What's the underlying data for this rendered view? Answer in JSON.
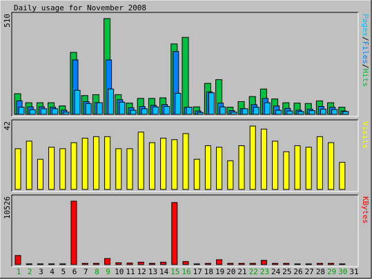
{
  "colors": {
    "background": "#c0c0c0",
    "hits": "#00c040",
    "files": "#0080ff",
    "pages": "#00c0ff",
    "visits": "#ffff00",
    "kbytes": "#ff0000",
    "weekend_label": "#00a000",
    "label": "#000000"
  },
  "chart_data": {
    "type": "bar",
    "title": "Daily usage for November 2008",
    "categories": [
      "1",
      "2",
      "3",
      "4",
      "5",
      "6",
      "7",
      "8",
      "9",
      "10",
      "11",
      "12",
      "13",
      "14",
      "15",
      "16",
      "17",
      "18",
      "19",
      "20",
      "21",
      "22",
      "23",
      "24",
      "25",
      "26",
      "27",
      "28",
      "29",
      "30",
      "31"
    ],
    "weekend_days": [
      "1",
      "2",
      "8",
      "9",
      "15",
      "16",
      "22",
      "23",
      "29",
      "30"
    ],
    "panels": [
      {
        "name": "top",
        "ymax_label": "510",
        "ylim": [
          0,
          510
        ],
        "legend": [
          "Pages",
          "/",
          "Files",
          "/",
          "Hits"
        ],
        "series": [
          {
            "name": "Hits",
            "values": [
              110,
              62,
              62,
              62,
              45,
              330,
              100,
              105,
              510,
              105,
              60,
              85,
              85,
              88,
              375,
              410,
              40,
              165,
              185,
              38,
              68,
              95,
              135,
              82,
              62,
              60,
              58,
              72,
              62,
              38,
              0
            ]
          },
          {
            "name": "Files",
            "values": [
              72,
              40,
              40,
              38,
              22,
              290,
              68,
              62,
              290,
              78,
              35,
              42,
              48,
              52,
              335,
              38,
              18,
              120,
              60,
              20,
              30,
              52,
              85,
              45,
              32,
              22,
              28,
              42,
              38,
              18,
              0
            ]
          },
          {
            "name": "Pages",
            "values": [
              38,
              25,
              30,
              30,
              12,
              128,
              58,
              62,
              135,
              65,
              22,
              30,
              40,
              42,
              112,
              38,
              10,
              115,
              40,
              12,
              30,
              38,
              62,
              22,
              18,
              15,
              20,
              28,
              26,
              15,
              0
            ]
          }
        ]
      },
      {
        "name": "middle",
        "ymax_label": "42",
        "ylim": [
          0,
          42
        ],
        "legend": [
          "Visits"
        ],
        "series": [
          {
            "name": "Visits",
            "values": [
              27,
              32,
              20,
              28,
              27,
              31,
              34,
              35,
              35,
              27,
              27,
              38,
              31,
              34,
              33,
              37,
              20,
              29,
              28,
              19,
              29,
              42,
              40,
              32,
              25,
              29,
              28,
              35,
              31,
              18,
              0
            ]
          }
        ]
      },
      {
        "name": "bottom",
        "ymax_label": "10526",
        "ylim": [
          0,
          10526
        ],
        "legend": [
          "KBytes"
        ],
        "series": [
          {
            "name": "KBytes",
            "values": [
              1500,
              120,
              120,
              120,
              120,
              10526,
              200,
              200,
              1000,
              300,
              250,
              400,
              200,
              400,
              10300,
              500,
              100,
              200,
              800,
              200,
              200,
              200,
              700,
              200,
              200,
              100,
              100,
              200,
              200,
              100,
              0
            ]
          }
        ]
      }
    ]
  }
}
